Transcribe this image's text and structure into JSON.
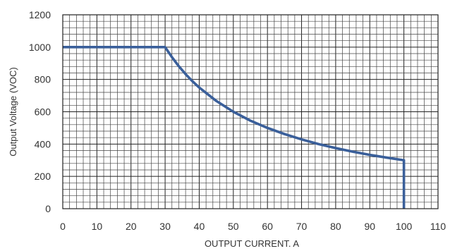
{
  "chart_data": {
    "type": "line",
    "title": "",
    "xlabel": "OUTPUT CURRENT. A",
    "ylabel": "Output Voltage (VOC)",
    "xlim": [
      0,
      110
    ],
    "ylim": [
      0,
      1200
    ],
    "x_ticks": [
      "0",
      "10",
      "20",
      "30",
      "40",
      "50",
      "60",
      "70",
      "80",
      "90",
      "100",
      "110"
    ],
    "y_ticks": [
      "0",
      "200",
      "400",
      "600",
      "800",
      "1000",
      "1200"
    ],
    "grid": true,
    "legend": "none",
    "series": [
      {
        "color": "#3a5f9a",
        "x": [
          0,
          30,
          32,
          34,
          36,
          38,
          40,
          45,
          50,
          55,
          60,
          65,
          70,
          75,
          80,
          85,
          90,
          95,
          100,
          100
        ],
        "y": [
          1000,
          1000,
          938,
          882,
          833,
          789,
          750,
          667,
          600,
          545,
          500,
          462,
          429,
          400,
          375,
          353,
          333,
          316,
          300,
          0
        ]
      }
    ]
  }
}
